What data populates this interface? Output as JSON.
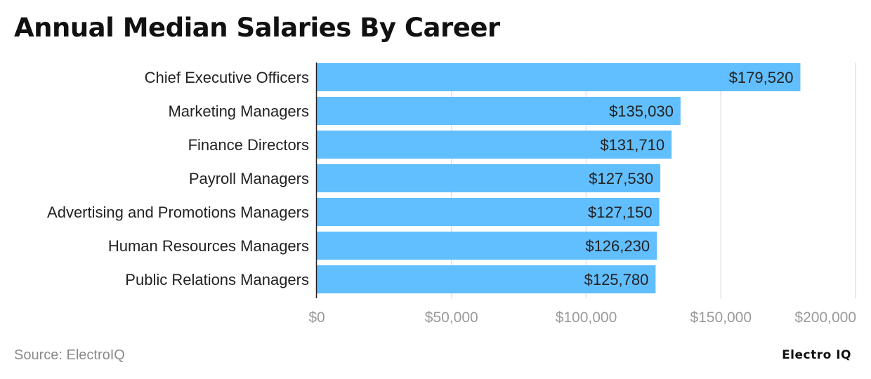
{
  "title": "Annual Median Salaries By Career",
  "source": "Source: ElectroIQ",
  "brand": "Electro IQ",
  "colors": {
    "bar": "#62bfff",
    "grid": "#e2e2e2",
    "axis": "#222222"
  },
  "chart_data": {
    "type": "bar",
    "orientation": "horizontal",
    "title": "Annual Median Salaries By Career",
    "categories": [
      "Chief Executive Officers",
      "Marketing Managers",
      "Finance Directors",
      "Payroll Managers",
      "Advertising and Promotions Managers",
      "Human Resources Managers",
      "Public Relations Managers"
    ],
    "values": [
      179520,
      135030,
      131710,
      127530,
      127150,
      126230,
      125780
    ],
    "value_labels": [
      "$179,520",
      "$135,030",
      "$131,710",
      "$127,530",
      "$127,150",
      "$126,230",
      "$125,780"
    ],
    "xlim": [
      0,
      200000
    ],
    "xticks": [
      0,
      50000,
      100000,
      150000,
      200000
    ],
    "xtick_labels": [
      "$0",
      "$50,000",
      "$100,000",
      "$150,000",
      "$200,000"
    ],
    "xlabel": "",
    "ylabel": "",
    "grid": true,
    "legend": "none"
  }
}
